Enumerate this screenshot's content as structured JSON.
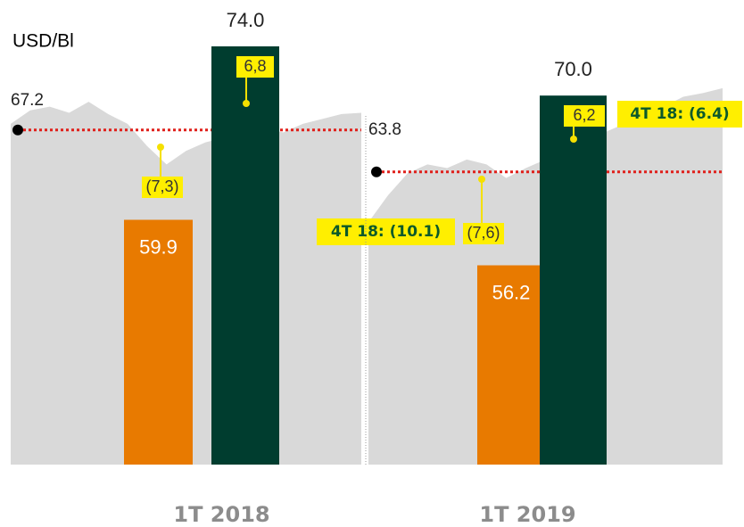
{
  "chart_data": [
    {
      "type": "bar",
      "y_label": "USD/Bl",
      "title": "1T 2018",
      "values": [
        59.9,
        74.0
      ],
      "value_labels": [
        "59.9",
        "74.0"
      ],
      "colors": [
        "#e87a00",
        "#003d2f"
      ],
      "reference": 67.2,
      "reference_color": "#e0201b",
      "annotations": [
        "6,8",
        "(7,3)"
      ],
      "notes": [],
      "price": [
        67.7,
        68.8,
        69.1,
        68.6,
        69.5,
        68.5,
        67.7,
        65.9,
        64.4,
        65.5,
        66.2,
        66.6,
        67.0,
        67.3,
        67.0,
        67.7,
        68.1,
        68.5,
        68.6
      ],
      "price_color": "#d9d9d9",
      "ylim": [
        40,
        74
      ]
    },
    {
      "type": "bar",
      "title": "1T 2019",
      "values": [
        56.2,
        70.0
      ],
      "value_labels": [
        "56.2",
        "70.0"
      ],
      "colors": [
        "#e87a00",
        "#003d2f"
      ],
      "reference": 63.8,
      "reference_color": "#e0201b",
      "annotations": [
        "6,2",
        "(7,6)"
      ],
      "notes": [
        "4T 18: (10.1)",
        "4T 18: (6.4)"
      ],
      "price": [
        59.7,
        61.9,
        63.7,
        64.4,
        64.1,
        64.8,
        64.4,
        63.3,
        64.1,
        64.8,
        65.5,
        66.2,
        67.0,
        67.7,
        68.5,
        69.1,
        69.9,
        70.2,
        70.6
      ],
      "price_color": "#d9d9d9",
      "ylim": [
        40,
        74
      ]
    }
  ]
}
